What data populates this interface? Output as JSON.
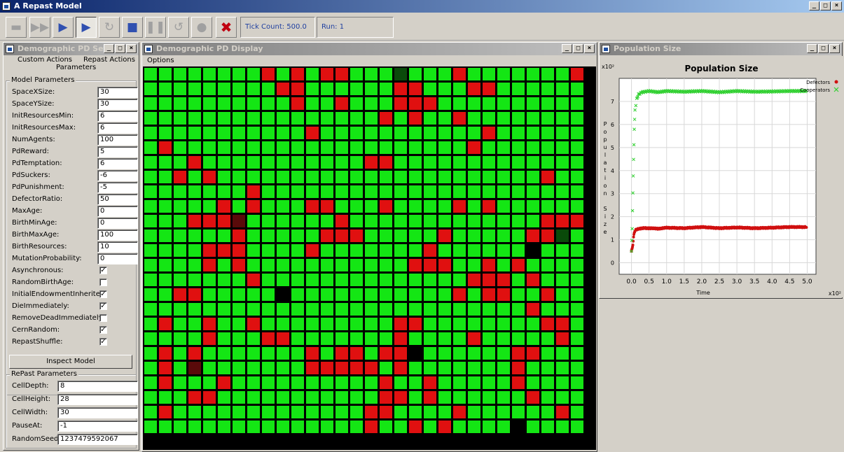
{
  "app": {
    "title": "A Repast Model"
  },
  "toolbar": {
    "buttons": [
      {
        "name": "setup-icon",
        "glyph": "▬",
        "active": false
      },
      {
        "name": "step-icon",
        "glyph": "▶▶",
        "active": false
      },
      {
        "name": "start-icon",
        "glyph": "▶",
        "active": true
      },
      {
        "name": "step-forward-icon",
        "glyph": "▶",
        "active": true
      },
      {
        "name": "reset-icon",
        "glyph": "↻",
        "active": false
      },
      {
        "name": "stop-icon",
        "glyph": "■",
        "active": true
      },
      {
        "name": "pause-icon",
        "glyph": "❚❚",
        "active": false
      },
      {
        "name": "refresh-icon",
        "glyph": "↺",
        "active": false
      },
      {
        "name": "lightbulb-icon",
        "glyph": "●",
        "active": false
      },
      {
        "name": "exit-icon",
        "glyph": "✖",
        "active": true
      }
    ],
    "tick_count": "Tick Count: 500.0",
    "run": "Run: 1"
  },
  "settings": {
    "title": "Demographic PD Settings",
    "tabs": [
      "Custom Actions",
      "Repast Actions",
      "Parameters"
    ],
    "model_group": "Model Parameters",
    "params": [
      {
        "label": "SpaceXSize:",
        "value": "30"
      },
      {
        "label": "SpaceYSize:",
        "value": "30"
      },
      {
        "label": "InitResourcesMin:",
        "value": "6"
      },
      {
        "label": "InitResourcesMax:",
        "value": "6"
      },
      {
        "label": "NumAgents:",
        "value": "100"
      },
      {
        "label": "PdReward:",
        "value": "5"
      },
      {
        "label": "PdTemptation:",
        "value": "6"
      },
      {
        "label": "PdSuckers:",
        "value": "-6"
      },
      {
        "label": "PdPunishment:",
        "value": "-5"
      },
      {
        "label": "DefectorRatio:",
        "value": "50"
      },
      {
        "label": "MaxAge:",
        "value": "0"
      },
      {
        "label": "BirthMinAge:",
        "value": "0"
      },
      {
        "label": "BirthMaxAge:",
        "value": "100"
      },
      {
        "label": "BirthResources:",
        "value": "10"
      },
      {
        "label": "MutationProbability:",
        "value": "0"
      }
    ],
    "checks": [
      {
        "label": "Asynchronous:",
        "checked": true
      },
      {
        "label": "RandomBirthAge:",
        "checked": false
      },
      {
        "label": "InitialEndowmentInherited:",
        "checked": true
      },
      {
        "label": "DieImmediately:",
        "checked": true
      },
      {
        "label": "RemoveDeadImmediately:",
        "checked": false
      },
      {
        "label": "CernRandom:",
        "checked": true
      },
      {
        "label": "RepastShuffle:",
        "checked": true
      }
    ],
    "inspect_button": "Inspect Model",
    "repast_group": "RePast Parameters",
    "repast_params": [
      {
        "label": "CellDepth:",
        "value": "8"
      },
      {
        "label": "CellHeight:",
        "value": "28"
      },
      {
        "label": "CellWidth:",
        "value": "30"
      },
      {
        "label": "PauseAt:",
        "value": "-1"
      },
      {
        "label": "RandomSeed:",
        "value": "1237479592067"
      }
    ]
  },
  "display": {
    "title": "Demographic PD Display",
    "menu": "Options",
    "grid_cols": 30,
    "grid_rows": 25,
    "colors": {
      "cooperator": "#14e614",
      "defector": "#e01010",
      "dark_defector": "#5a0a0a",
      "dark_cooperator": "#0a4a0a",
      "empty": "#000000"
    },
    "defector_cells": [
      [
        0,
        8
      ],
      [
        0,
        10
      ],
      [
        0,
        12
      ],
      [
        0,
        13
      ],
      [
        0,
        17
      ],
      [
        0,
        21
      ],
      [
        0,
        29
      ],
      [
        1,
        9
      ],
      [
        1,
        10
      ],
      [
        1,
        17
      ],
      [
        1,
        18
      ],
      [
        1,
        22
      ],
      [
        1,
        23
      ],
      [
        2,
        10
      ],
      [
        2,
        13
      ],
      [
        2,
        17
      ],
      [
        2,
        18
      ],
      [
        2,
        19
      ],
      [
        3,
        16
      ],
      [
        3,
        18
      ],
      [
        3,
        21
      ],
      [
        4,
        11
      ],
      [
        4,
        23
      ],
      [
        5,
        1
      ],
      [
        5,
        22
      ],
      [
        6,
        3
      ],
      [
        6,
        15
      ],
      [
        6,
        16
      ],
      [
        7,
        2
      ],
      [
        7,
        4
      ],
      [
        7,
        27
      ],
      [
        8,
        7
      ],
      [
        9,
        5
      ],
      [
        9,
        7
      ],
      [
        9,
        11
      ],
      [
        9,
        12
      ],
      [
        9,
        16
      ],
      [
        9,
        21
      ],
      [
        9,
        23
      ],
      [
        10,
        3
      ],
      [
        10,
        4
      ],
      [
        10,
        5
      ],
      [
        10,
        13
      ],
      [
        10,
        27
      ],
      [
        10,
        28
      ],
      [
        10,
        29
      ],
      [
        11,
        6
      ],
      [
        11,
        12
      ],
      [
        11,
        13
      ],
      [
        11,
        14
      ],
      [
        11,
        20
      ],
      [
        11,
        26
      ],
      [
        11,
        27
      ],
      [
        12,
        4
      ],
      [
        12,
        5
      ],
      [
        12,
        6
      ],
      [
        12,
        11
      ],
      [
        12,
        19
      ],
      [
        12,
        26
      ],
      [
        13,
        4
      ],
      [
        13,
        6
      ],
      [
        13,
        18
      ],
      [
        13,
        19
      ],
      [
        13,
        20
      ],
      [
        13,
        23
      ],
      [
        13,
        25
      ],
      [
        14,
        7
      ],
      [
        14,
        22
      ],
      [
        14,
        23
      ],
      [
        14,
        24
      ],
      [
        14,
        26
      ],
      [
        15,
        2
      ],
      [
        15,
        3
      ],
      [
        15,
        21
      ],
      [
        15,
        23
      ],
      [
        15,
        24
      ],
      [
        15,
        27
      ],
      [
        16,
        26
      ],
      [
        17,
        1
      ],
      [
        17,
        4
      ],
      [
        17,
        7
      ],
      [
        17,
        17
      ],
      [
        17,
        18
      ],
      [
        17,
        27
      ],
      [
        17,
        28
      ],
      [
        18,
        4
      ],
      [
        18,
        8
      ],
      [
        18,
        9
      ],
      [
        18,
        17
      ],
      [
        18,
        22
      ],
      [
        18,
        28
      ],
      [
        19,
        1
      ],
      [
        19,
        3
      ],
      [
        19,
        11
      ],
      [
        19,
        13
      ],
      [
        19,
        14
      ],
      [
        19,
        16
      ],
      [
        19,
        17
      ],
      [
        19,
        25
      ],
      [
        19,
        26
      ],
      [
        20,
        1
      ],
      [
        20,
        3
      ],
      [
        20,
        11
      ],
      [
        20,
        12
      ],
      [
        20,
        13
      ],
      [
        20,
        14
      ],
      [
        20,
        15
      ],
      [
        20,
        17
      ],
      [
        20,
        25
      ],
      [
        21,
        1
      ],
      [
        21,
        5
      ],
      [
        21,
        16
      ],
      [
        21,
        19
      ],
      [
        21,
        25
      ],
      [
        22,
        3
      ],
      [
        22,
        4
      ],
      [
        22,
        16
      ],
      [
        22,
        17
      ],
      [
        22,
        19
      ],
      [
        22,
        26
      ],
      [
        23,
        1
      ],
      [
        23,
        15
      ],
      [
        23,
        16
      ],
      [
        23,
        21
      ],
      [
        23,
        28
      ],
      [
        24,
        15
      ],
      [
        24,
        18
      ],
      [
        24,
        20
      ],
      [
        25,
        11
      ],
      [
        25,
        12
      ],
      [
        25,
        16
      ],
      [
        25,
        19
      ],
      [
        25,
        28
      ],
      [
        26,
        7
      ],
      [
        26,
        10
      ],
      [
        26,
        15
      ],
      [
        26,
        17
      ],
      [
        26,
        18
      ],
      [
        26,
        20
      ],
      [
        26,
        27
      ],
      [
        27,
        12
      ],
      [
        27,
        17
      ],
      [
        27,
        18
      ],
      [
        27,
        19
      ],
      [
        27,
        22
      ],
      [
        28,
        3
      ],
      [
        28,
        9
      ],
      [
        28,
        15
      ],
      [
        28,
        17
      ],
      [
        28,
        18
      ],
      [
        28,
        21
      ]
    ],
    "dark_defector_cells": [
      [
        10,
        6
      ],
      [
        20,
        3
      ]
    ],
    "dark_cooperator_cells": [
      [
        0,
        17
      ],
      [
        11,
        28
      ]
    ],
    "empty_cells": [
      [
        12,
        26
      ],
      [
        15,
        9
      ],
      [
        19,
        18
      ],
      [
        24,
        25
      ]
    ]
  },
  "population": {
    "title": "Population Size",
    "window_title": "Population Size",
    "chart_data": {
      "type": "scatter",
      "title": "Population Size",
      "xlabel": "Time",
      "ylabel": "Population Size",
      "x_scale_label": "x10²",
      "y_scale_label": "x10²",
      "xlim": [
        0,
        5.0
      ],
      "ylim": [
        0,
        7.5
      ],
      "xticks": [
        "0.0",
        "0.5",
        "1.0",
        "1.5",
        "2.0",
        "2.5",
        "3.0",
        "3.5",
        "4.0",
        "4.5",
        "5.0"
      ],
      "yticks": [
        "0",
        "1",
        "2",
        "3",
        "4",
        "5",
        "6",
        "7"
      ],
      "legend": "top-right",
      "series": [
        {
          "name": "Defectors",
          "color": "#d01010",
          "marker": "circle",
          "x": [
            0.0,
            0.02,
            0.04,
            0.06,
            0.08,
            0.1,
            0.15,
            0.2,
            0.3,
            0.5,
            0.75,
            1.0,
            1.5,
            2.0,
            2.5,
            3.0,
            3.5,
            4.0,
            4.5,
            5.0
          ],
          "y": [
            0.5,
            0.6,
            0.8,
            1.1,
            1.3,
            1.4,
            1.45,
            1.47,
            1.5,
            1.5,
            1.48,
            1.52,
            1.5,
            1.55,
            1.5,
            1.53,
            1.5,
            1.52,
            1.55,
            1.55
          ]
        },
        {
          "name": "Cooperators",
          "color": "#30d030",
          "marker": "x",
          "x": [
            0.0,
            0.02,
            0.04,
            0.06,
            0.08,
            0.1,
            0.15,
            0.2,
            0.3,
            0.5,
            0.75,
            1.0,
            1.5,
            2.0,
            2.5,
            3.0,
            3.5,
            4.0,
            4.5,
            5.0
          ],
          "y": [
            0.5,
            1.5,
            3.0,
            4.5,
            5.8,
            6.6,
            7.1,
            7.3,
            7.4,
            7.45,
            7.4,
            7.45,
            7.42,
            7.45,
            7.4,
            7.45,
            7.42,
            7.43,
            7.45,
            7.45
          ]
        }
      ]
    }
  }
}
